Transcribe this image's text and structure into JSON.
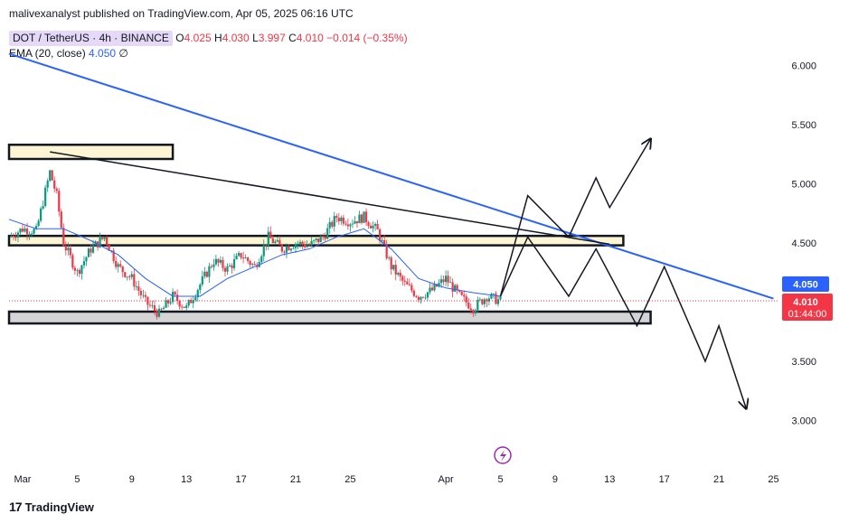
{
  "header": {
    "publisher": "malivexanalyst",
    "published_text": "published on TradingView.com,",
    "date_text": "Apr 05, 2025 06:16 UTC"
  },
  "legend": {
    "symbol": "DOT / TetherUS · 4h · BINANCE",
    "o_label": "O",
    "o": "4.025",
    "h_label": "H",
    "h": "4.030",
    "l_label": "L",
    "l": "3.997",
    "c_label": "C",
    "c": "4.010",
    "change": "−0.014 (−0.35%)",
    "ema_label": "EMA (20, close)",
    "ema_value": "4.050",
    "ema_extra": "∅"
  },
  "price_badges": {
    "ema": "4.050",
    "last": "4.010",
    "countdown": "01:44:00"
  },
  "logo": {
    "text": "TradingView",
    "glyph": "17"
  },
  "colors": {
    "up": "#089981",
    "down": "#f23645",
    "ema": "#2962ff",
    "trendline_blue": "#2962ff",
    "zone_fill": "#fdf5d3",
    "zone_grey": "#d4d4d4"
  },
  "chart_data": {
    "type": "candlestick",
    "x_tick_labels": [
      "Mar",
      "5",
      "9",
      "13",
      "17",
      "21",
      "25",
      "Apr",
      "5",
      "9",
      "13",
      "17",
      "21",
      "25"
    ],
    "x_tick_dates": [
      "2025-03-01",
      "2025-03-05",
      "2025-03-09",
      "2025-03-13",
      "2025-03-17",
      "2025-03-21",
      "2025-03-25",
      "2025-04-01",
      "2025-04-05",
      "2025-04-09",
      "2025-04-13",
      "2025-04-17",
      "2025-04-21",
      "2025-04-25"
    ],
    "y_tick_labels": [
      "6.000",
      "5.500",
      "5.000",
      "4.500",
      "3.500",
      "3.000"
    ],
    "y_ticks": [
      6.0,
      5.5,
      5.0,
      4.5,
      3.5,
      3.0
    ],
    "ylim": [
      2.55,
      6.3
    ],
    "interval": "4h",
    "close_path": [
      [
        "2025-02-28",
        4.55
      ],
      [
        "2025-03-01",
        4.62
      ],
      [
        "2025-03-02",
        4.6
      ],
      [
        "2025-03-03",
        5.1
      ],
      [
        "2025-03-03T12",
        4.9
      ],
      [
        "2025-03-04",
        4.5
      ],
      [
        "2025-03-05",
        4.25
      ],
      [
        "2025-03-06",
        4.45
      ],
      [
        "2025-03-07",
        4.55
      ],
      [
        "2025-03-08",
        4.3
      ],
      [
        "2025-03-09",
        4.2
      ],
      [
        "2025-03-10",
        4.0
      ],
      [
        "2025-03-11",
        3.9
      ],
      [
        "2025-03-12",
        4.05
      ],
      [
        "2025-03-13",
        3.95
      ],
      [
        "2025-03-14",
        4.15
      ],
      [
        "2025-03-15",
        4.35
      ],
      [
        "2025-03-16",
        4.28
      ],
      [
        "2025-03-17",
        4.4
      ],
      [
        "2025-03-18",
        4.3
      ],
      [
        "2025-03-19",
        4.55
      ],
      [
        "2025-03-20",
        4.45
      ],
      [
        "2025-03-21",
        4.5
      ],
      [
        "2025-03-22",
        4.48
      ],
      [
        "2025-03-23",
        4.55
      ],
      [
        "2025-03-24",
        4.72
      ],
      [
        "2025-03-25",
        4.68
      ],
      [
        "2025-03-26",
        4.72
      ],
      [
        "2025-03-27",
        4.6
      ],
      [
        "2025-03-28",
        4.3
      ],
      [
        "2025-03-29",
        4.15
      ],
      [
        "2025-03-30",
        4.05
      ],
      [
        "2025-03-31",
        4.1
      ],
      [
        "2025-04-01",
        4.2
      ],
      [
        "2025-04-02",
        4.05
      ],
      [
        "2025-04-03",
        3.95
      ],
      [
        "2025-04-04",
        4.05
      ],
      [
        "2025-04-05",
        4.01
      ]
    ],
    "ema_path": [
      [
        "2025-02-28",
        4.7
      ],
      [
        "2025-03-02",
        4.62
      ],
      [
        "2025-03-04",
        4.62
      ],
      [
        "2025-03-06",
        4.52
      ],
      [
        "2025-03-08",
        4.4
      ],
      [
        "2025-03-10",
        4.2
      ],
      [
        "2025-03-12",
        4.05
      ],
      [
        "2025-03-14",
        4.05
      ],
      [
        "2025-03-16",
        4.2
      ],
      [
        "2025-03-18",
        4.3
      ],
      [
        "2025-03-20",
        4.4
      ],
      [
        "2025-03-22",
        4.45
      ],
      [
        "2025-03-24",
        4.55
      ],
      [
        "2025-03-26",
        4.62
      ],
      [
        "2025-03-28",
        4.45
      ],
      [
        "2025-03-30",
        4.2
      ],
      [
        "2025-04-01",
        4.12
      ],
      [
        "2025-04-03",
        4.08
      ],
      [
        "2025-04-05",
        4.05
      ]
    ],
    "zones": [
      {
        "from": "2025-02-28",
        "to": "2025-03-12",
        "top": 5.33,
        "bottom": 5.21,
        "fill": "#fdf5d3"
      },
      {
        "from": "2025-02-28",
        "to": "2025-04-14",
        "top": 4.56,
        "bottom": 4.48,
        "fill": "#fdf5d3"
      },
      {
        "from": "2025-02-28",
        "to": "2025-04-16",
        "top": 3.92,
        "bottom": 3.82,
        "fill": "#d4d4d4"
      }
    ],
    "trendlines": [
      {
        "color": "#2962ff",
        "points": [
          [
            "2025-02-28",
            6.1
          ],
          [
            "2025-04-25",
            4.03
          ]
        ]
      },
      {
        "color": "#131722",
        "points": [
          [
            "2025-03-03",
            5.27
          ],
          [
            "2025-04-13",
            4.49
          ]
        ]
      }
    ],
    "projections": [
      {
        "color": "#131722",
        "points": [
          [
            "2025-04-05",
            4.05
          ],
          [
            "2025-04-07",
            4.9
          ],
          [
            "2025-04-10",
            4.55
          ],
          [
            "2025-04-12",
            5.05
          ],
          [
            "2025-04-13",
            4.8
          ],
          [
            "2025-04-16",
            5.38
          ]
        ]
      },
      {
        "color": "#131722",
        "points": [
          [
            "2025-04-05",
            4.05
          ],
          [
            "2025-04-07",
            4.55
          ],
          [
            "2025-04-10",
            4.05
          ],
          [
            "2025-04-12",
            4.45
          ],
          [
            "2025-04-15",
            3.8
          ],
          [
            "2025-04-17",
            4.3
          ],
          [
            "2025-04-20",
            3.5
          ],
          [
            "2025-04-21",
            3.8
          ],
          [
            "2025-04-23",
            3.1
          ]
        ]
      }
    ],
    "last_price": 4.01,
    "ema_value": 4.05
  }
}
